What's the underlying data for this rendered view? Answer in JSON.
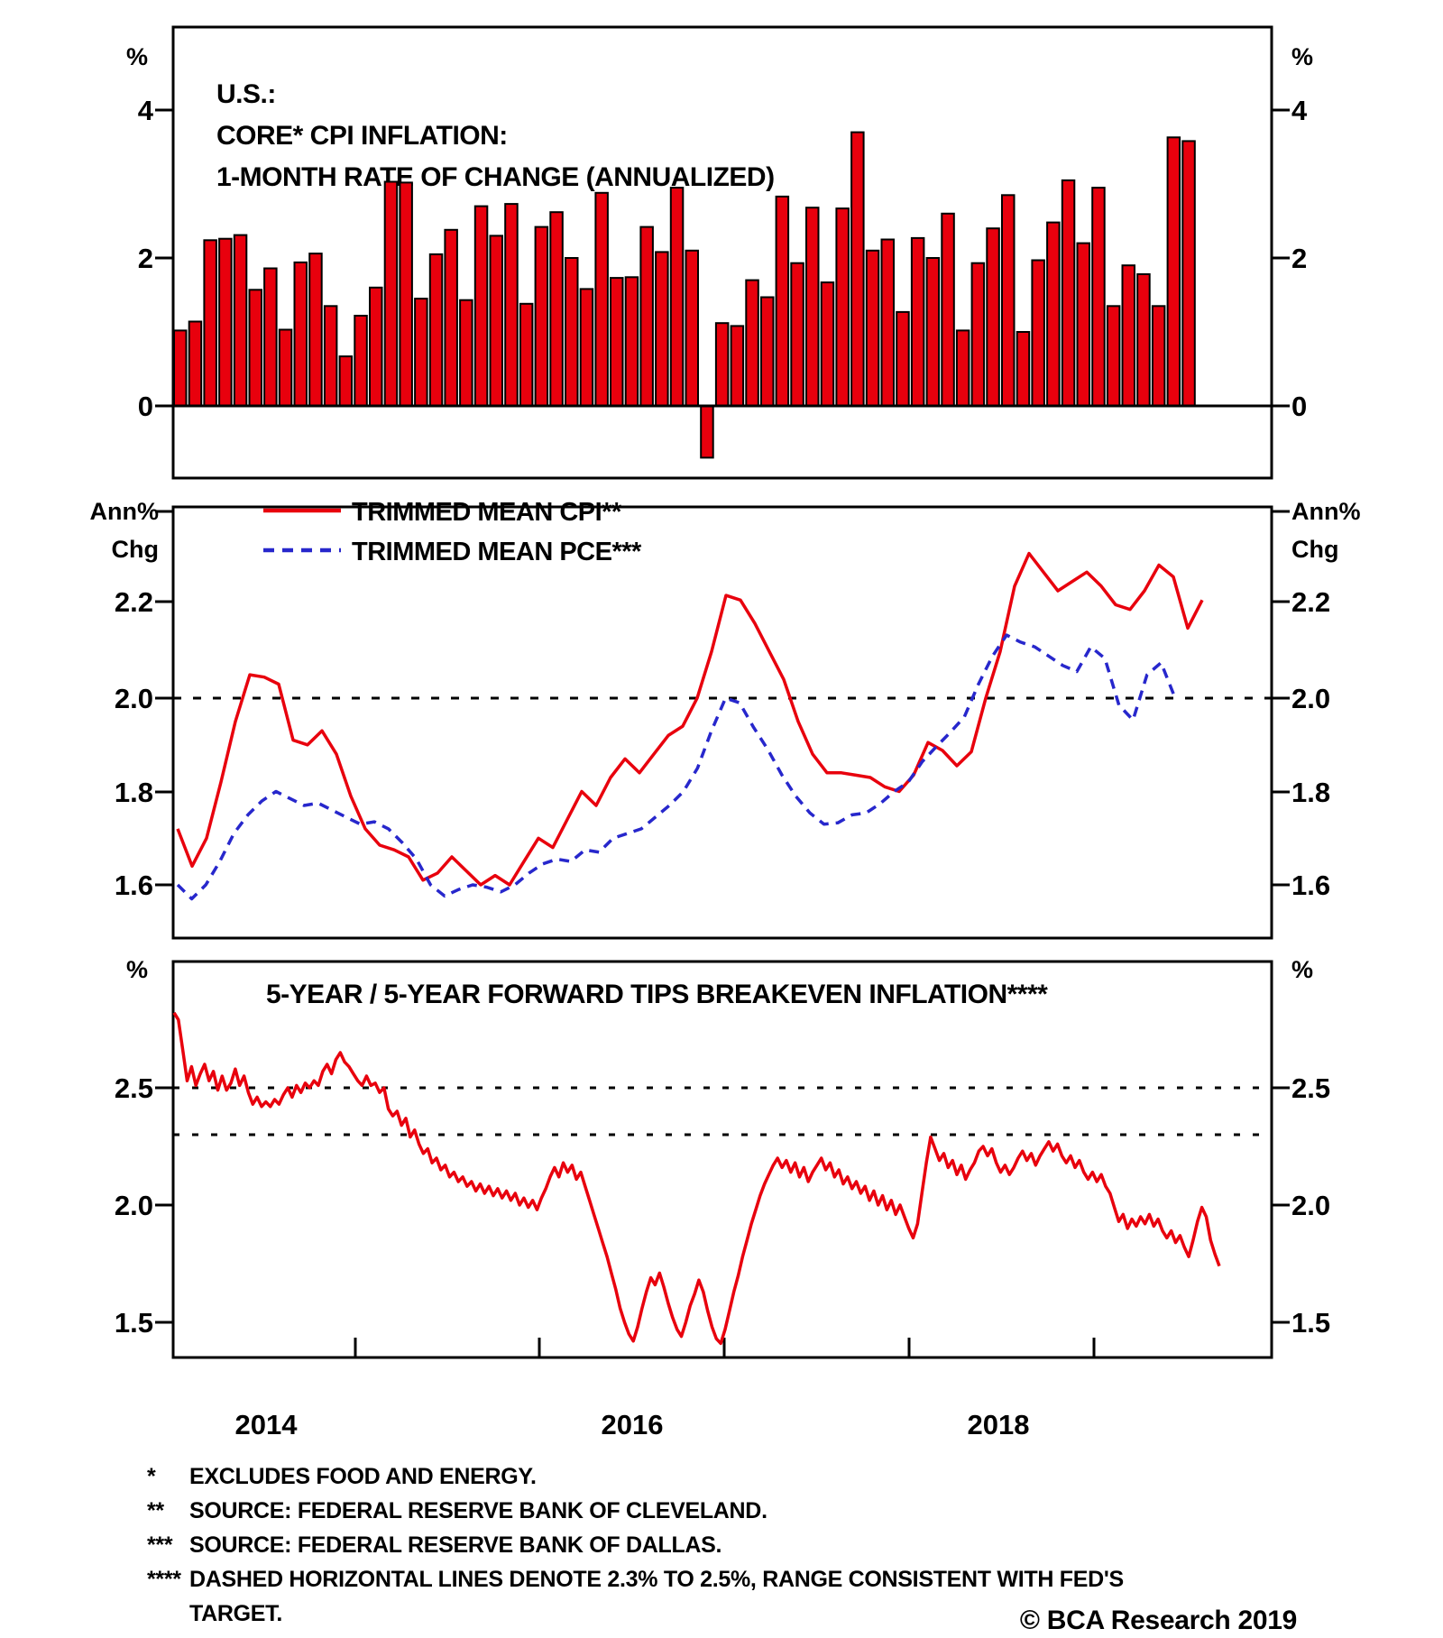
{
  "colors": {
    "red": "#e8000d",
    "blue": "#2727cc",
    "black": "#000000",
    "background": "#ffffff"
  },
  "panel1": {
    "title_lines": [
      "U.S.:",
      "CORE* CPI INFLATION:",
      "1-MONTH RATE OF CHANGE (ANNUALIZED)"
    ],
    "unit": "%",
    "yticks": [
      "4",
      "2",
      "0"
    ]
  },
  "panel2": {
    "unit_line1": "Ann%",
    "unit_line2": "Chg",
    "yticks": [
      "2.2",
      "2.0",
      "1.8",
      "1.6"
    ],
    "legend": [
      {
        "label": "TRIMMED MEAN CPI**",
        "color": "red",
        "style": "solid"
      },
      {
        "label": "TRIMMED MEAN PCE***",
        "color": "blue",
        "style": "dashed"
      }
    ]
  },
  "panel3": {
    "title": "5-YEAR / 5-YEAR FORWARD TIPS BREAKEVEN INFLATION****",
    "unit": "%",
    "yticks": [
      "2.5",
      "2.0",
      "1.5"
    ]
  },
  "x_axis": {
    "year_labels": [
      "2014",
      "2016",
      "2018"
    ]
  },
  "footnotes": [
    {
      "marker": "*",
      "text": "EXCLUDES FOOD AND ENERGY."
    },
    {
      "marker": "**",
      "text": "SOURCE: FEDERAL RESERVE BANK OF CLEVELAND."
    },
    {
      "marker": "***",
      "text": "SOURCE: FEDERAL RESERVE BANK OF DALLAS."
    },
    {
      "marker": "****",
      "text": "DASHED HORIZONTAL LINES DENOTE 2.3% TO 2.5%, RANGE CONSISTENT WITH FED'S"
    },
    {
      "marker": "",
      "text": "TARGET."
    }
  ],
  "copyright": "© BCA Research 2019",
  "chart_data": [
    {
      "type": "bar",
      "title": "U.S.: CORE* CPI INFLATION: 1-MONTH RATE OF CHANGE (ANNUALIZED)",
      "ylabel": "%",
      "ylim": [
        -1.1,
        4.7
      ],
      "yticks": [
        0,
        2,
        4
      ],
      "x_range_years": [
        2013.6,
        2019.2
      ],
      "values": [
        1.02,
        1.14,
        2.24,
        2.26,
        2.31,
        1.57,
        1.86,
        1.03,
        1.94,
        2.06,
        1.35,
        0.67,
        1.22,
        1.6,
        3.03,
        3.02,
        1.45,
        2.05,
        2.38,
        1.43,
        2.7,
        2.3,
        2.73,
        1.38,
        2.42,
        2.62,
        2.0,
        1.58,
        2.88,
        1.73,
        1.74,
        2.42,
        2.08,
        2.95,
        2.1,
        -0.7,
        1.12,
        1.08,
        1.7,
        1.47,
        2.83,
        1.93,
        2.68,
        1.67,
        2.67,
        3.7,
        2.1,
        2.25,
        1.27,
        2.27,
        2.0,
        2.6,
        1.02,
        1.93,
        2.4,
        2.85,
        1.0,
        1.97,
        2.48,
        3.05,
        2.2,
        2.95,
        1.35,
        1.9,
        1.78,
        1.35,
        3.63,
        3.58
      ]
    },
    {
      "type": "line",
      "ylabel": "Ann% Chg",
      "ylim": [
        1.48,
        2.41
      ],
      "yticks": [
        2.2,
        2.0,
        1.8,
        1.6
      ],
      "ref_lines": [
        2.0
      ],
      "x_range_years": [
        2013.6,
        2019.2
      ],
      "legend_position": "top-left",
      "series": [
        {
          "name": "TRIMMED MEAN CPI**",
          "color": "red",
          "style": "solid",
          "values": [
            1.72,
            1.64,
            1.7,
            1.82,
            1.95,
            2.05,
            2.045,
            2.03,
            1.91,
            1.9,
            1.93,
            1.88,
            1.79,
            1.72,
            1.685,
            1.675,
            1.66,
            1.61,
            1.625,
            1.66,
            1.63,
            1.6,
            1.62,
            1.6,
            1.65,
            1.7,
            1.68,
            1.74,
            1.8,
            1.77,
            1.83,
            1.87,
            1.84,
            1.88,
            1.92,
            1.94,
            2.0,
            2.1,
            2.22,
            2.21,
            2.16,
            2.1,
            2.04,
            1.95,
            1.88,
            1.84,
            1.84,
            1.835,
            1.83,
            1.81,
            1.8,
            1.835,
            1.905,
            1.888,
            1.855,
            1.885,
            2.0,
            2.1,
            2.24,
            2.31,
            2.27,
            2.23,
            2.25,
            2.27,
            2.24,
            2.2,
            2.19,
            2.23,
            2.285,
            2.26,
            2.15,
            2.21
          ]
        },
        {
          "name": "TRIMMED MEAN PCE***",
          "color": "blue",
          "style": "dashed",
          "values": [
            1.6,
            1.57,
            1.6,
            1.65,
            1.71,
            1.75,
            1.78,
            1.8,
            1.785,
            1.77,
            1.775,
            1.76,
            1.745,
            1.73,
            1.735,
            1.72,
            1.69,
            1.655,
            1.6,
            1.576,
            1.59,
            1.6,
            1.595,
            1.585,
            1.6,
            1.625,
            1.645,
            1.655,
            1.65,
            1.675,
            1.67,
            1.7,
            1.71,
            1.72,
            1.745,
            1.77,
            1.8,
            1.85,
            1.93,
            2.0,
            1.99,
            1.937,
            1.89,
            1.836,
            1.79,
            1.754,
            1.73,
            1.733,
            1.75,
            1.754,
            1.774,
            1.8,
            1.82,
            1.864,
            1.896,
            1.927,
            1.96,
            2.03,
            2.09,
            2.135,
            2.12,
            2.11,
            2.09,
            2.07,
            2.057,
            2.11,
            2.085,
            1.985,
            1.953,
            2.05,
            2.076,
            2.0
          ]
        }
      ]
    },
    {
      "type": "line",
      "title": "5-YEAR / 5-YEAR FORWARD TIPS BREAKEVEN INFLATION****",
      "ylabel": "%",
      "ylim": [
        1.35,
        3.04
      ],
      "yticks": [
        2.5,
        2.0,
        1.5
      ],
      "ref_lines": [
        2.5,
        2.3
      ],
      "x_range_years": [
        2013.6,
        2019.25
      ],
      "series": [
        {
          "name": "5-year / 5-year forward TIPS breakeven inflation",
          "color": "red",
          "style": "solid",
          "values": [
            2.82,
            2.79,
            2.66,
            2.53,
            2.59,
            2.51,
            2.56,
            2.6,
            2.53,
            2.57,
            2.49,
            2.55,
            2.49,
            2.52,
            2.58,
            2.51,
            2.55,
            2.48,
            2.43,
            2.46,
            2.42,
            2.44,
            2.42,
            2.45,
            2.43,
            2.47,
            2.5,
            2.46,
            2.51,
            2.48,
            2.52,
            2.5,
            2.53,
            2.51,
            2.57,
            2.6,
            2.56,
            2.62,
            2.65,
            2.61,
            2.59,
            2.56,
            2.53,
            2.51,
            2.55,
            2.51,
            2.52,
            2.48,
            2.5,
            2.41,
            2.38,
            2.4,
            2.34,
            2.37,
            2.29,
            2.32,
            2.26,
            2.22,
            2.24,
            2.18,
            2.2,
            2.15,
            2.17,
            2.12,
            2.14,
            2.1,
            2.12,
            2.08,
            2.1,
            2.06,
            2.09,
            2.05,
            2.08,
            2.04,
            2.07,
            2.03,
            2.06,
            2.02,
            2.05,
            2.0,
            2.03,
            1.99,
            2.02,
            1.98,
            2.03,
            2.07,
            2.12,
            2.16,
            2.12,
            2.18,
            2.14,
            2.17,
            2.11,
            2.14,
            2.08,
            2.02,
            1.96,
            1.9,
            1.84,
            1.78,
            1.71,
            1.64,
            1.56,
            1.5,
            1.45,
            1.42,
            1.48,
            1.56,
            1.63,
            1.69,
            1.66,
            1.71,
            1.65,
            1.58,
            1.52,
            1.47,
            1.44,
            1.5,
            1.57,
            1.62,
            1.68,
            1.63,
            1.55,
            1.48,
            1.43,
            1.41,
            1.47,
            1.55,
            1.63,
            1.7,
            1.78,
            1.85,
            1.92,
            1.98,
            2.04,
            2.09,
            2.13,
            2.17,
            2.2,
            2.16,
            2.19,
            2.14,
            2.18,
            2.12,
            2.16,
            2.1,
            2.14,
            2.17,
            2.2,
            2.15,
            2.18,
            2.12,
            2.15,
            2.09,
            2.12,
            2.07,
            2.1,
            2.05,
            2.08,
            2.02,
            2.06,
            2.0,
            2.04,
            1.98,
            2.02,
            1.96,
            2.0,
            1.95,
            1.9,
            1.86,
            1.92,
            2.05,
            2.18,
            2.29,
            2.24,
            2.19,
            2.22,
            2.16,
            2.19,
            2.13,
            2.17,
            2.11,
            2.15,
            2.18,
            2.23,
            2.25,
            2.21,
            2.24,
            2.18,
            2.14,
            2.17,
            2.13,
            2.16,
            2.2,
            2.23,
            2.19,
            2.22,
            2.17,
            2.21,
            2.24,
            2.27,
            2.23,
            2.26,
            2.21,
            2.18,
            2.21,
            2.16,
            2.19,
            2.14,
            2.11,
            2.14,
            2.1,
            2.13,
            2.08,
            2.05,
            1.99,
            1.93,
            1.96,
            1.9,
            1.94,
            1.91,
            1.95,
            1.92,
            1.96,
            1.91,
            1.94,
            1.89,
            1.86,
            1.89,
            1.84,
            1.87,
            1.82,
            1.78,
            1.85,
            1.93,
            1.99,
            1.95,
            1.85,
            1.79,
            1.74
          ]
        }
      ]
    }
  ]
}
